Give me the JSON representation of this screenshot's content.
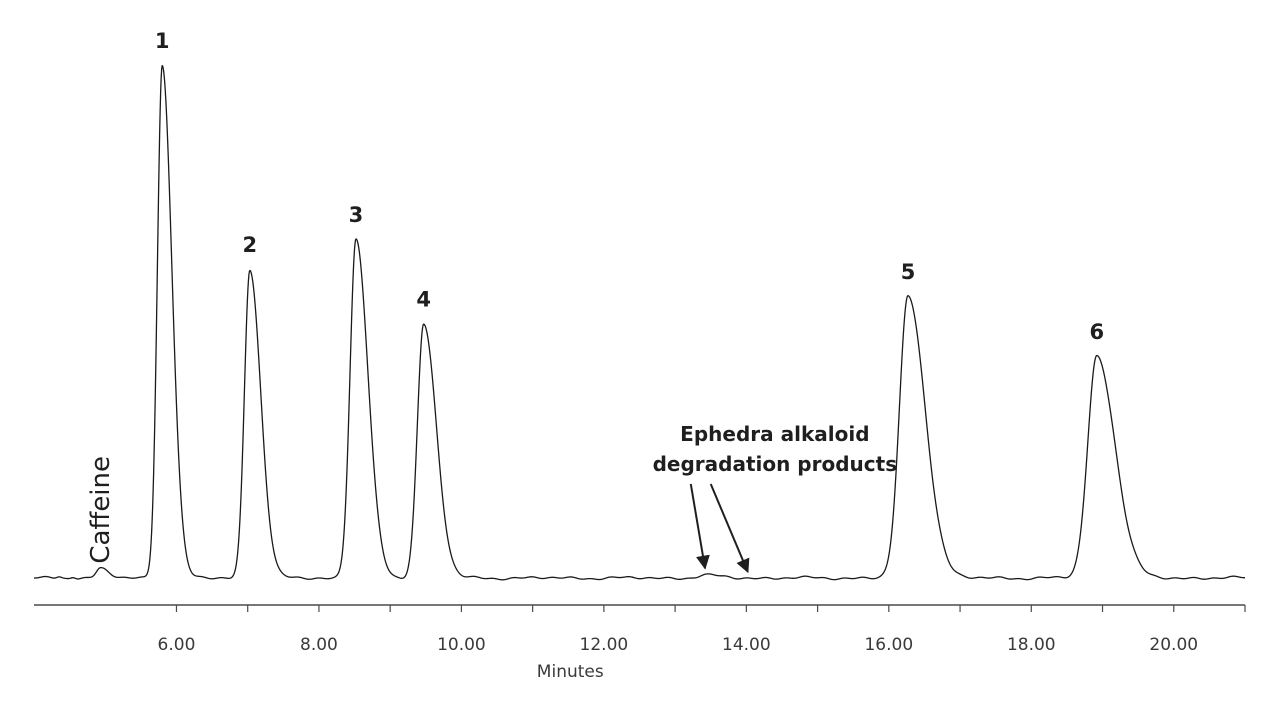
{
  "chart_data": {
    "type": "line",
    "title": "",
    "xlabel": "Minutes",
    "ylabel": "",
    "xlim": [
      4.0,
      21.0
    ],
    "ylim": [
      0,
      100
    ],
    "grid": false,
    "x_ticks": [
      6,
      7,
      8,
      9,
      10,
      11,
      12,
      13,
      14,
      15,
      16,
      17,
      18,
      19,
      20,
      21
    ],
    "x_tick_labels": [
      "6.00",
      "",
      "8.00",
      "",
      "10.00",
      "",
      "12.00",
      "",
      "14.00",
      "",
      "16.00",
      "",
      "18.00",
      "",
      "20.00",
      ""
    ],
    "baseline": 1.0,
    "series": [
      {
        "peaks": [
          {
            "label": "Caffeine",
            "x": 4.93,
            "height": 2.8,
            "width": 0.07
          },
          {
            "label": "1",
            "x": 5.8,
            "height": 100.0,
            "width": 0.085
          },
          {
            "label": "2",
            "x": 7.03,
            "height": 60.6,
            "width": 0.095
          },
          {
            "label": "3",
            "x": 8.52,
            "height": 66.4,
            "width": 0.105
          },
          {
            "label": "4",
            "x": 9.47,
            "height": 50.1,
            "width": 0.11
          },
          {
            "label": "",
            "x": 13.42,
            "height": 1.5,
            "width": 0.13
          },
          {
            "label": "",
            "x": 14.02,
            "height": 1.0,
            "width": 0.12
          },
          {
            "label": "5",
            "x": 16.27,
            "height": 55.4,
            "width": 0.15
          },
          {
            "label": "6",
            "x": 18.92,
            "height": 43.8,
            "width": 0.16
          }
        ]
      }
    ],
    "peak_labels": [
      "1",
      "2",
      "3",
      "4",
      "5",
      "6"
    ],
    "caffeine_label": "Caffeine",
    "annotation": {
      "lines": [
        "Ephedra alkaloid",
        "degradation products"
      ],
      "arrows_to_x": [
        13.42,
        14.02
      ]
    }
  }
}
